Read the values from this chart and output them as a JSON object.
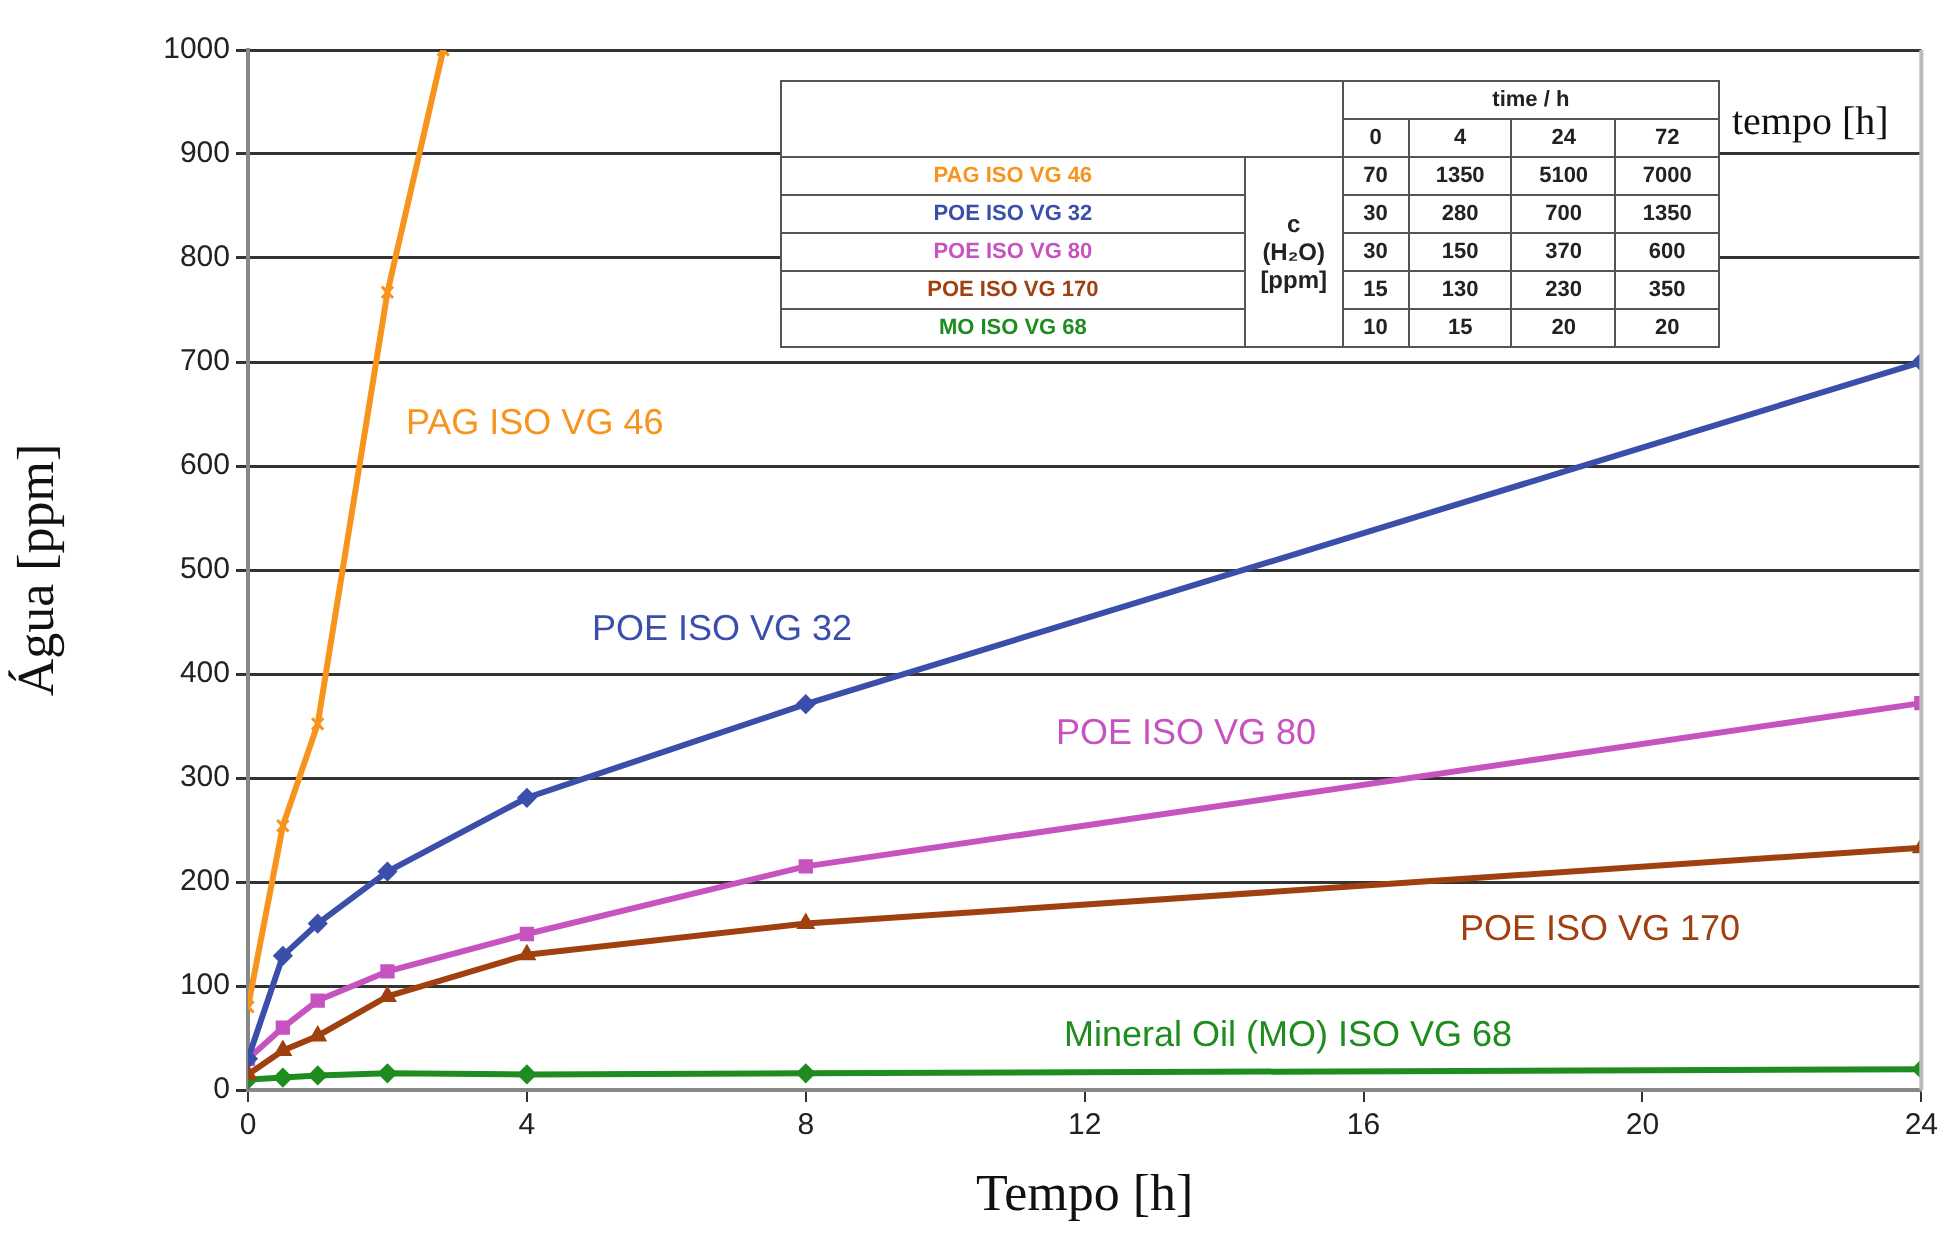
{
  "chart_data": [
    {
      "type": "line",
      "xlabel": "Tempo [h]",
      "ylabel": "Água [ppm]",
      "x": [
        0,
        0.5,
        1,
        2,
        4,
        8,
        24
      ],
      "xlim": [
        0,
        24
      ],
      "xticks": [
        0,
        4,
        8,
        12,
        16,
        20,
        24
      ],
      "ylim": [
        0,
        1000
      ],
      "yticks": [
        0,
        100,
        200,
        300,
        400,
        500,
        600,
        700,
        800,
        900,
        1000
      ],
      "grid": "y",
      "legend": false,
      "line_style": "solid",
      "annotations": [
        "tempo [h]"
      ],
      "series": [
        {
          "name": "PAG ISO VG 46",
          "color": "#f7941d",
          "marker": "cross",
          "x": [
            0,
            0.5,
            1,
            2,
            2.8
          ],
          "values": [
            80,
            254,
            352,
            767,
            1000
          ]
        },
        {
          "name": "POE ISO VG 32",
          "color": "#3a4eaa",
          "marker": "diamond",
          "values": [
            30,
            129,
            160,
            210,
            281,
            371,
            700
          ]
        },
        {
          "name": "POE ISO VG 80",
          "color": "#c653c0",
          "marker": "square",
          "values": [
            30,
            60,
            86,
            114,
            150,
            215,
            372
          ]
        },
        {
          "name": "POE ISO VG 170",
          "color": "#a0400f",
          "marker": "triangle",
          "values": [
            15,
            38,
            52,
            90,
            130,
            160,
            233
          ]
        },
        {
          "name": "Mineral Oil (MO) ISO VG 68",
          "color": "#1e8c1e",
          "marker": "diamond",
          "values": [
            10,
            12,
            14,
            16,
            15,
            16,
            20
          ]
        }
      ]
    },
    {
      "type": "other",
      "data_labels": true,
      "xlabel": "time / h",
      "ylabel": "c (H₂O) [ppm]",
      "categories": [
        "0",
        "4",
        "24",
        "72"
      ],
      "series": [
        {
          "name": "PAG ISO VG 46",
          "values": [
            70,
            1350,
            5100,
            7000
          ]
        },
        {
          "name": "POE ISO VG 32",
          "values": [
            30,
            280,
            700,
            1350
          ]
        },
        {
          "name": "POE ISO VG 80",
          "values": [
            30,
            150,
            370,
            600
          ]
        },
        {
          "name": "POE ISO VG 170",
          "values": [
            15,
            130,
            230,
            350
          ]
        },
        {
          "name": "MO ISO VG 68",
          "values": [
            10,
            15,
            20,
            20
          ]
        }
      ]
    }
  ]
}
